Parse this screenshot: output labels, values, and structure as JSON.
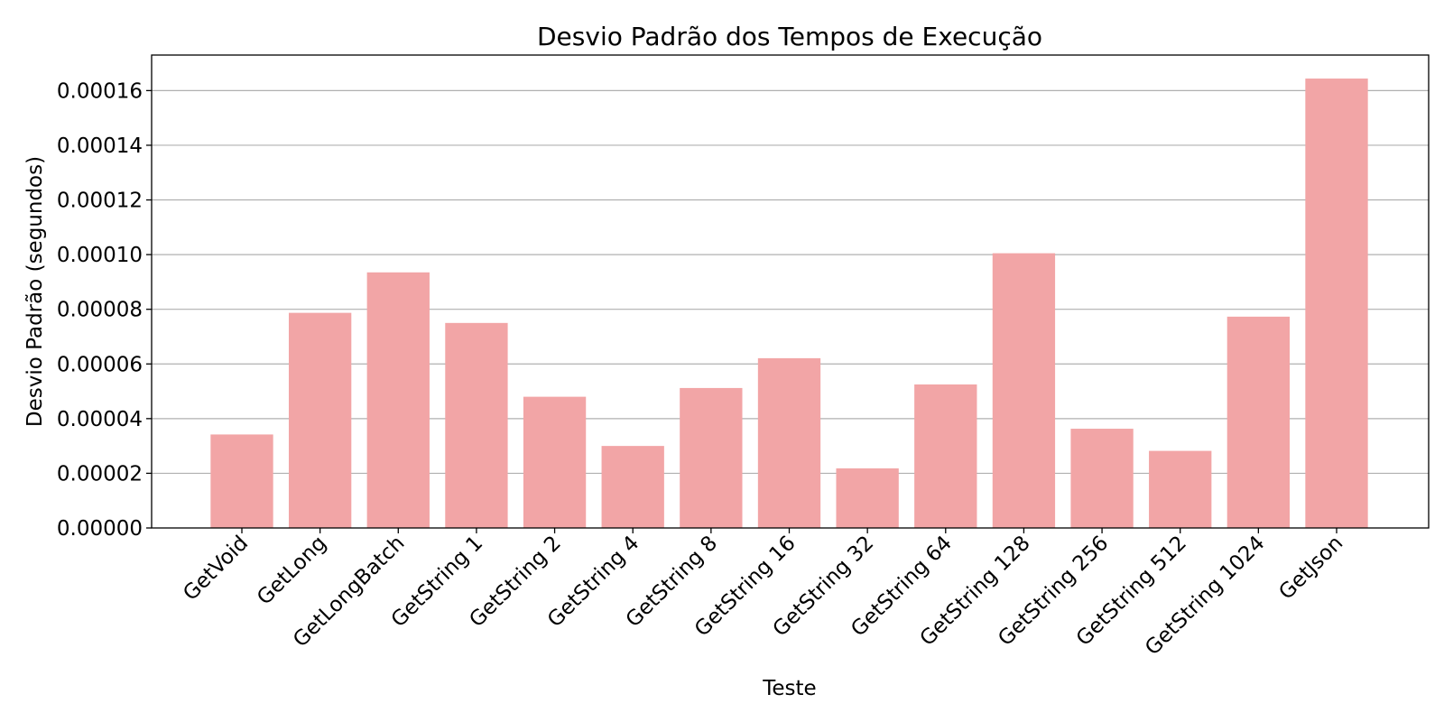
{
  "chart_data": {
    "type": "bar",
    "title": "Desvio Padrão dos Tempos de Execução",
    "xlabel": "Teste",
    "ylabel": "Desvio Padrão (segundos)",
    "categories": [
      "GetVoid",
      "GetLong",
      "GetLongBatch",
      "GetString 1",
      "GetString 2",
      "GetString 4",
      "GetString 8",
      "GetString 16",
      "GetString 32",
      "GetString 64",
      "GetString 128",
      "GetString 256",
      "GetString 512",
      "GetString 1024",
      "GetJson"
    ],
    "values": [
      3.42e-05,
      7.87e-05,
      9.35e-05,
      7.5e-05,
      4.8e-05,
      3e-05,
      5.12e-05,
      6.21e-05,
      2.18e-05,
      5.25e-05,
      0.0001005,
      3.63e-05,
      2.82e-05,
      7.73e-05,
      0.0001644
    ],
    "ylim": [
      0,
      0.000173
    ],
    "yticks": [
      "0.00000",
      "0.00002",
      "0.00004",
      "0.00006",
      "0.00008",
      "0.00010",
      "0.00012",
      "0.00014",
      "0.00016"
    ],
    "ytick_values": [
      0,
      2e-05,
      4e-05,
      6e-05,
      8e-05,
      0.0001,
      0.00012,
      0.00014,
      0.00016
    ],
    "grid": "y",
    "bar_color": "#f2a5a6"
  }
}
